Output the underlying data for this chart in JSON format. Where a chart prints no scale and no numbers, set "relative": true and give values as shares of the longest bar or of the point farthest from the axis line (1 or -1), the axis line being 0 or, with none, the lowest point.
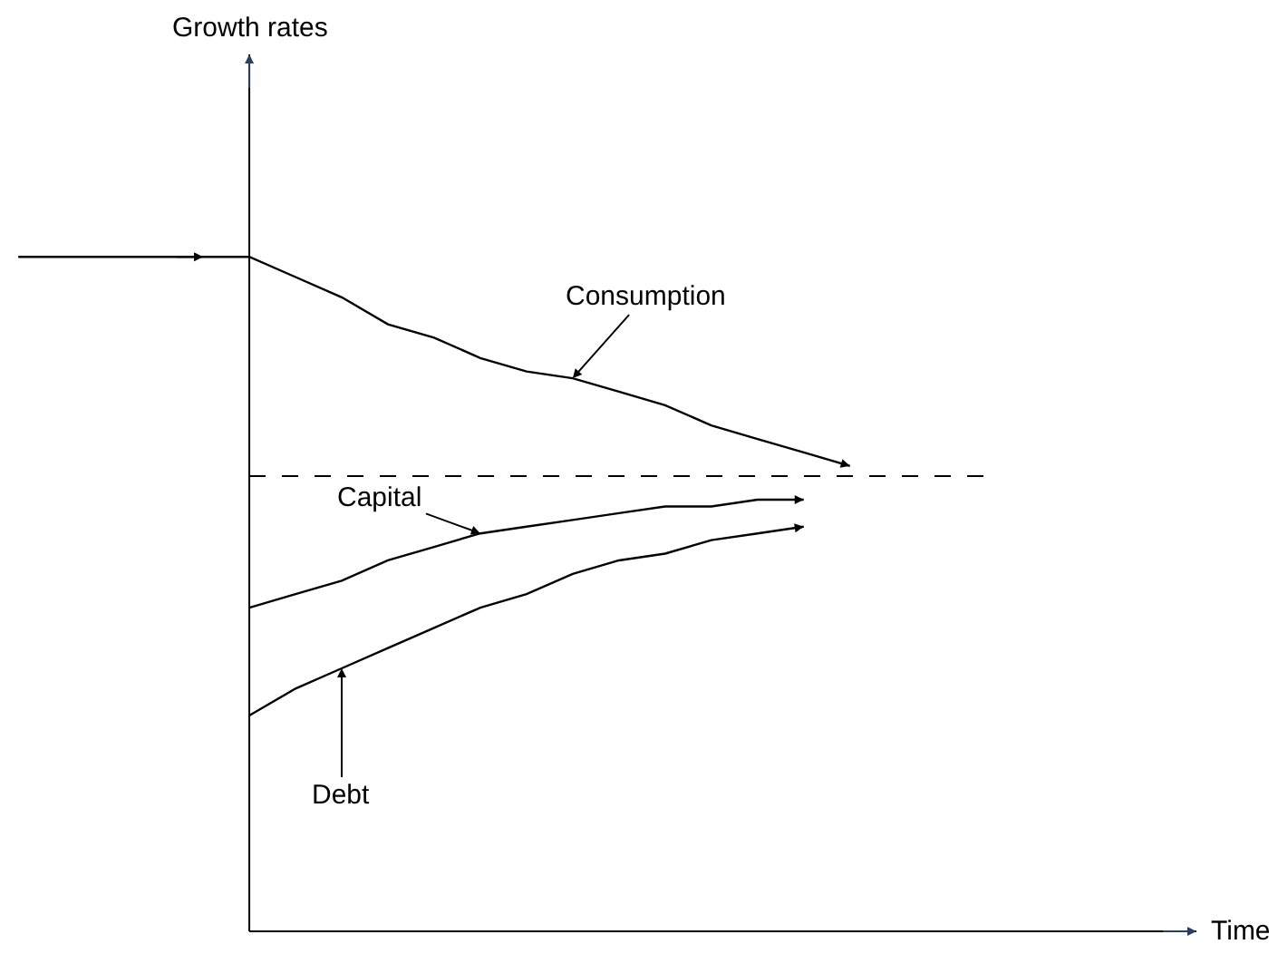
{
  "chart_data": {
    "type": "line",
    "relative": true,
    "annotations": [
      "Growth rates",
      "Time"
    ],
    "legend": false,
    "marker": "none",
    "line_style": "solid",
    "categories": [
      null,
      null,
      null,
      null,
      null,
      null,
      null,
      null,
      null,
      null,
      null,
      null,
      null,
      null,
      null,
      null,
      null,
      null,
      null,
      null,
      null,
      null
    ],
    "series": [
      {
        "name": "Consumption",
        "color": "#000000",
        "values": [
          1.0,
          1.0,
          1.0,
          1.0,
          1.0,
          1.0,
          0.97,
          0.94,
          0.9,
          0.88,
          0.85,
          0.83,
          0.82,
          0.8,
          0.78,
          0.75,
          0.73,
          0.71,
          0.69,
          null,
          null,
          null
        ]
      },
      {
        "name": "Capital",
        "color": "#000000",
        "values": [
          null,
          null,
          null,
          null,
          null,
          0.48,
          0.5,
          0.52,
          0.55,
          0.57,
          0.59,
          0.6,
          0.61,
          0.62,
          0.63,
          0.63,
          0.64,
          0.64,
          null,
          null,
          null,
          null
        ]
      },
      {
        "name": "Debt",
        "color": "#000000",
        "values": [
          null,
          null,
          null,
          null,
          null,
          0.32,
          0.36,
          0.39,
          0.42,
          0.45,
          0.48,
          0.5,
          0.53,
          0.55,
          0.56,
          0.58,
          0.59,
          0.6,
          null,
          null,
          null,
          null
        ]
      }
    ],
    "ref_lines": [
      {
        "axis": "y",
        "value": 0.675,
        "color": "#000000",
        "line_style": "dashed"
      }
    ]
  }
}
